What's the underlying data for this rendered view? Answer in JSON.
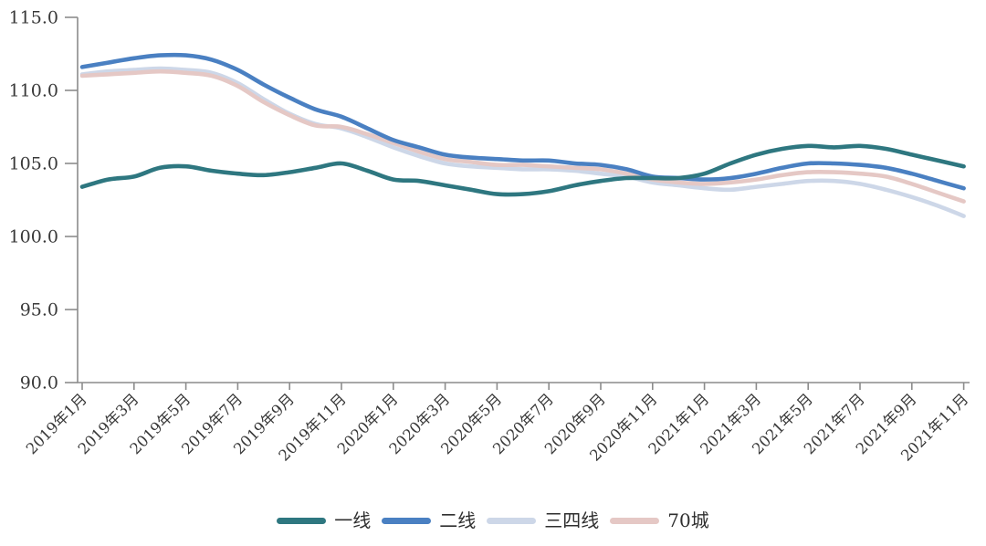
{
  "chart_data": {
    "type": "line",
    "title": "",
    "grid": false,
    "legend_position": "bottom",
    "axis_color": "#8c8c8c",
    "label_color": "#383838",
    "ylim": [
      90,
      115
    ],
    "y_ticks": [
      90,
      95,
      100,
      105,
      110,
      115
    ],
    "y_tick_labels": [
      "90.0",
      "95.0",
      "100.0",
      "105.0",
      "110.0",
      "115.0"
    ],
    "categories": [
      "2019年1月",
      "2019年2月",
      "2019年3月",
      "2019年4月",
      "2019年5月",
      "2019年6月",
      "2019年7月",
      "2019年8月",
      "2019年9月",
      "2019年10月",
      "2019年11月",
      "2019年12月",
      "2020年1月",
      "2020年2月",
      "2020年3月",
      "2020年4月",
      "2020年5月",
      "2020年6月",
      "2020年7月",
      "2020年8月",
      "2020年9月",
      "2020年10月",
      "2020年11月",
      "2020年12月",
      "2021年1月",
      "2021年2月",
      "2021年3月",
      "2021年4月",
      "2021年5月",
      "2021年6月",
      "2021年7月",
      "2021年8月",
      "2021年9月",
      "2021年10月",
      "2021年11月"
    ],
    "x_tick_every": 2,
    "x_tick_labels": [
      "2019年1月",
      "2019年3月",
      "2019年5月",
      "2019年7月",
      "2019年9月",
      "2019年11月",
      "2020年1月",
      "2020年3月",
      "2020年5月",
      "2020年7月",
      "2020年9月",
      "2020年11月",
      "2021年1月",
      "2021年3月",
      "2021年5月",
      "2021年7月",
      "2021年9月",
      "2021年11月"
    ],
    "draw_order": [
      2,
      3,
      1,
      0
    ],
    "series": [
      {
        "id": "tier1",
        "name": "一线",
        "color": "#2e7780",
        "values": [
          103.4,
          103.9,
          104.1,
          104.7,
          104.8,
          104.5,
          104.3,
          104.2,
          104.4,
          104.7,
          105.0,
          104.5,
          103.9,
          103.8,
          103.5,
          103.2,
          102.9,
          102.9,
          103.1,
          103.5,
          103.8,
          104.0,
          104.0,
          104.0,
          104.3,
          105.0,
          105.6,
          106.0,
          106.2,
          106.1,
          106.2,
          106.0,
          105.6,
          105.2,
          104.8
        ]
      },
      {
        "id": "tier2",
        "name": "二线",
        "color": "#4a80c2",
        "values": [
          111.6,
          111.9,
          112.2,
          112.4,
          112.4,
          112.1,
          111.4,
          110.4,
          109.5,
          108.7,
          108.2,
          107.4,
          106.6,
          106.1,
          105.6,
          105.4,
          105.3,
          105.2,
          105.2,
          105.0,
          104.9,
          104.6,
          104.1,
          104.0,
          103.9,
          104.0,
          104.3,
          104.7,
          105.0,
          105.0,
          104.9,
          104.7,
          104.3,
          103.8,
          103.3
        ]
      },
      {
        "id": "tier34",
        "name": "三四线",
        "color": "#cdd7e8",
        "values": [
          111.1,
          111.3,
          111.4,
          111.5,
          111.4,
          111.2,
          110.5,
          109.4,
          108.4,
          107.7,
          107.4,
          106.8,
          106.1,
          105.5,
          105.0,
          104.8,
          104.7,
          104.6,
          104.6,
          104.5,
          104.3,
          104.1,
          103.7,
          103.5,
          103.3,
          103.2,
          103.4,
          103.6,
          103.8,
          103.8,
          103.6,
          103.2,
          102.7,
          102.1,
          101.4
        ]
      },
      {
        "id": "cities70",
        "name": "70城",
        "color": "#e5c8c5",
        "values": [
          111.0,
          111.1,
          111.2,
          111.3,
          111.2,
          111.0,
          110.3,
          109.2,
          108.3,
          107.6,
          107.5,
          107.0,
          106.4,
          105.8,
          105.3,
          105.1,
          104.9,
          104.9,
          104.8,
          104.7,
          104.6,
          104.3,
          103.9,
          103.7,
          103.6,
          103.7,
          103.9,
          104.2,
          104.4,
          104.4,
          104.3,
          104.1,
          103.6,
          103.0,
          102.4
        ]
      }
    ]
  }
}
